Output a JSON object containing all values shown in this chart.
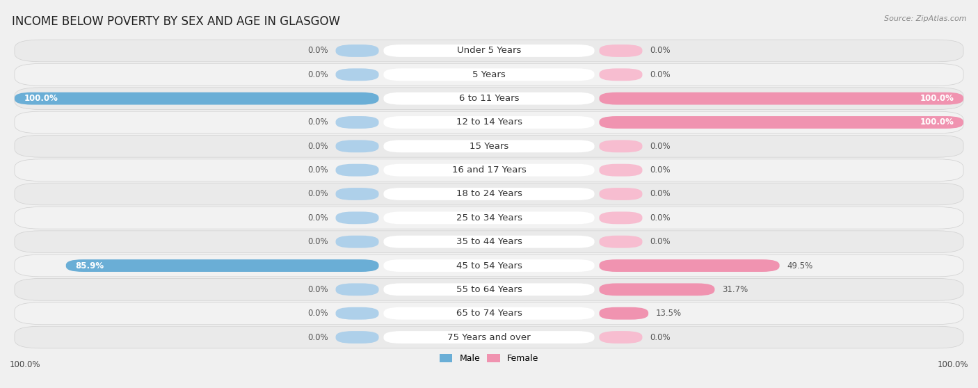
{
  "title": "INCOME BELOW POVERTY BY SEX AND AGE IN GLASGOW",
  "source": "Source: ZipAtlas.com",
  "categories": [
    "Under 5 Years",
    "5 Years",
    "6 to 11 Years",
    "12 to 14 Years",
    "15 Years",
    "16 and 17 Years",
    "18 to 24 Years",
    "25 to 34 Years",
    "35 to 44 Years",
    "45 to 54 Years",
    "55 to 64 Years",
    "65 to 74 Years",
    "75 Years and over"
  ],
  "male_values": [
    0.0,
    0.0,
    100.0,
    0.0,
    0.0,
    0.0,
    0.0,
    0.0,
    0.0,
    85.9,
    0.0,
    0.0,
    0.0
  ],
  "female_values": [
    0.0,
    0.0,
    100.0,
    100.0,
    0.0,
    0.0,
    0.0,
    0.0,
    0.0,
    49.5,
    31.7,
    13.5,
    0.0
  ],
  "male_color": "#6aaed6",
  "female_color": "#f093b0",
  "male_color_light": "#aed0ea",
  "female_color_light": "#f7bdd0",
  "male_label": "Male",
  "female_label": "Female",
  "max_val": 100.0,
  "title_fontsize": 12,
  "label_fontsize": 9.5,
  "value_fontsize": 8.5,
  "bg_color": "#f0f0f0",
  "row_bg": "#e8e8e8",
  "row_bg2": "#f0f0f0"
}
